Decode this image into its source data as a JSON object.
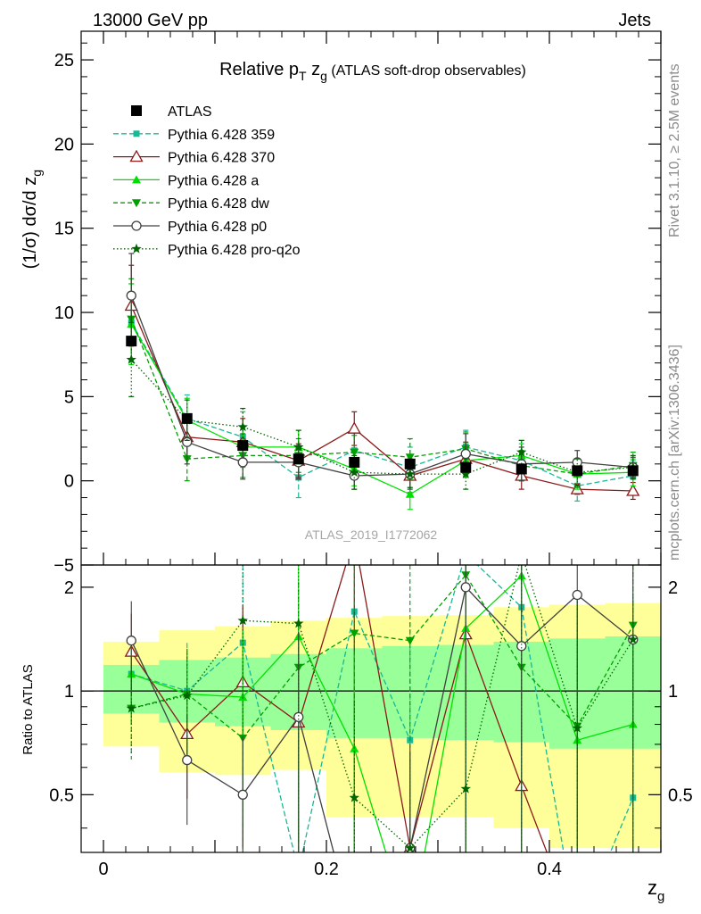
{
  "header": {
    "left": "13000 GeV pp",
    "right": "Jets"
  },
  "side_labels": {
    "rivet": "Rivet 3.1.10, ≥ 2.5M events",
    "mcplots": "mcplots.cern.ch [arXiv:1306.3436]"
  },
  "watermark": "ATLAS_2019_I1772062",
  "chart_data": {
    "type": "scatter",
    "title": "Relative p_T z_g (ATLAS soft-drop observables)",
    "title_parts": {
      "pre": "Relative p",
      "sub1": "T",
      "mid": " z",
      "sub2": "g",
      "post": " (ATLAS soft-drop observables)"
    },
    "ylabel": "(1/σ) dσ/d z_g",
    "ylabel_parts": {
      "main": "(1/σ) dσ/d z",
      "sub": "g"
    },
    "xlabel": "z_g",
    "xlabel_parts": {
      "main": "z",
      "sub": "g"
    },
    "ratio_ylabel": "Ratio to ATLAS",
    "xlim": [
      -0.02,
      0.5
    ],
    "ylim": [
      -5,
      26.7
    ],
    "ratio_ylim": [
      0.34,
      2.32
    ],
    "x_ticks": [
      0,
      0.2,
      0.4
    ],
    "x_tick_labels": [
      "0",
      "0.2",
      "0.4"
    ],
    "y_ticks": [
      -5,
      0,
      5,
      10,
      15,
      20,
      25
    ],
    "y_tick_labels": [
      "−5",
      "0",
      "5",
      "10",
      "15",
      "20",
      "25"
    ],
    "ratio_ticks": [
      0.5,
      1,
      2
    ],
    "ratio_tick_labels": [
      "0.5",
      "1",
      "2"
    ],
    "x": [
      0.025,
      0.075,
      0.125,
      0.175,
      0.225,
      0.275,
      0.325,
      0.375,
      0.425,
      0.475
    ],
    "bin_width": 0.05,
    "legend_position": "top-left",
    "data": {
      "name": "ATLAS",
      "values": [
        8.3,
        3.7,
        2.1,
        1.3,
        1.1,
        1.0,
        0.8,
        0.7,
        0.6,
        0.6
      ],
      "errors": [
        0.3,
        0.3,
        0.2,
        0.2,
        0.2,
        0.2,
        0.2,
        0.2,
        0.2,
        0.2
      ]
    },
    "bands": {
      "yellow_lo": [
        0.69,
        0.58,
        0.57,
        0.59,
        0.43,
        0.43,
        0.43,
        0.4,
        0.35,
        0.35
      ],
      "yellow_hi": [
        1.39,
        1.5,
        1.54,
        1.6,
        1.63,
        1.65,
        1.66,
        1.75,
        1.78,
        1.8
      ],
      "green_lo": [
        0.86,
        0.81,
        0.79,
        0.77,
        0.73,
        0.73,
        0.72,
        0.71,
        0.68,
        0.68
      ],
      "green_hi": [
        1.19,
        1.23,
        1.25,
        1.28,
        1.33,
        1.35,
        1.36,
        1.39,
        1.42,
        1.44
      ]
    },
    "series": [
      {
        "name": "Pythia 6.428 359",
        "color": "#18b894",
        "dash": "6,3",
        "marker": "square-small",
        "values": [
          9.4,
          3.7,
          2.6,
          0.2,
          1.8,
          0.8,
          2.0,
          1.2,
          -0.3,
          0.3
        ],
        "errors": [
          2.3,
          1.4,
          1.5,
          1.2,
          1.2,
          1.2,
          1.0,
          1.0,
          0.9,
          0.9
        ]
      },
      {
        "name": "Pythia 6.428 370",
        "color": "#8b1a1a",
        "dash": "",
        "marker": "triangle-open",
        "values": [
          10.4,
          2.6,
          2.3,
          1.2,
          3.1,
          0.3,
          1.3,
          0.3,
          -0.5,
          -0.6
        ],
        "errors": [
          2.4,
          1.3,
          1.4,
          1.0,
          1.0,
          1.0,
          1.0,
          0.8,
          0.3,
          0.5
        ]
      },
      {
        "name": "Pythia 6.428 a",
        "color": "#00e000",
        "dash": "",
        "marker": "triangle",
        "values": [
          9.3,
          3.6,
          2.0,
          2.0,
          0.7,
          -0.8,
          1.2,
          1.5,
          0.4,
          0.5
        ],
        "errors": [
          2.4,
          1.3,
          1.2,
          1.0,
          1.0,
          0.9,
          1.0,
          0.9,
          0.9,
          0.8
        ]
      },
      {
        "name": "Pythia 6.428 dw",
        "color": "#00a000",
        "dash": "5,3",
        "marker": "triangle-down",
        "values": [
          9.6,
          1.3,
          1.5,
          1.5,
          1.7,
          1.4,
          1.9,
          0.9,
          0.4,
          0.9
        ],
        "errors": [
          2.4,
          1.3,
          1.3,
          1.0,
          1.0,
          1.1,
          1.0,
          0.9,
          0.8,
          0.8
        ]
      },
      {
        "name": "Pythia 6.428 p0",
        "color": "#404040",
        "dash": "",
        "marker": "circle-open",
        "values": [
          11.0,
          2.3,
          1.1,
          1.1,
          0.3,
          0.4,
          1.6,
          1.0,
          1.1,
          0.8
        ],
        "errors": [
          2.5,
          1.3,
          1.0,
          1.0,
          0.8,
          0.9,
          1.2,
          1.0,
          0.7,
          0.6
        ]
      },
      {
        "name": "Pythia 6.428 pro-q2o",
        "color": "#006400",
        "dash": "1.5,2.5",
        "marker": "star",
        "values": [
          7.2,
          3.6,
          3.2,
          2.0,
          0.5,
          0.4,
          0.4,
          1.7,
          0.5,
          0.8
        ],
        "errors": [
          2.2,
          1.2,
          1.1,
          1.0,
          1.0,
          0.8,
          0.9,
          0.7,
          0.8,
          0.7
        ]
      }
    ],
    "ratios": [
      [
        1.12,
        1.0,
        1.38,
        0.3,
        1.7,
        0.72,
        2.5,
        1.75,
        0.2,
        0.49
      ],
      [
        1.3,
        0.75,
        1.06,
        0.81,
        2.8,
        0.35,
        1.46,
        0.53,
        0.2,
        0.2
      ],
      [
        1.12,
        0.98,
        0.96,
        1.44,
        0.68,
        0.2,
        1.52,
        2.16,
        0.72,
        0.8
      ],
      [
        0.89,
        0.98,
        0.73,
        1.17,
        1.47,
        1.4,
        2.17,
        1.17,
        0.79,
        1.55
      ],
      [
        1.4,
        0.63,
        0.5,
        0.84,
        0.2,
        0.35,
        2.0,
        1.35,
        1.9,
        1.41
      ],
      [
        0.89,
        0.97,
        1.6,
        1.57,
        0.49,
        0.35,
        0.52,
        2.5,
        0.78,
        1.41
      ]
    ]
  }
}
